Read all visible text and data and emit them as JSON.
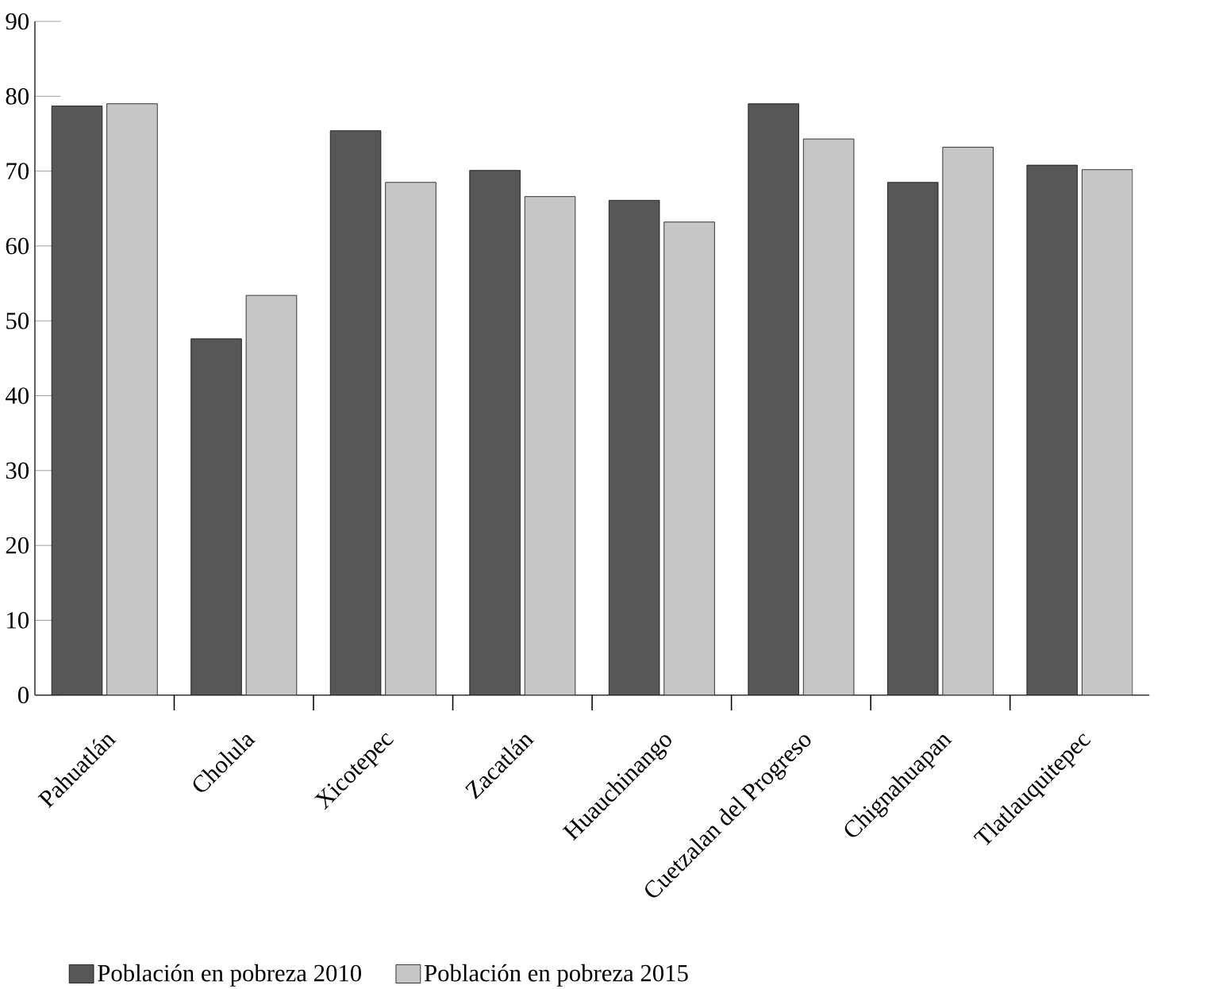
{
  "chart_data": {
    "type": "bar",
    "categories": [
      "Pahuatlán",
      "Cholula",
      "Xicotepec",
      "Zacatlán",
      "Huauchinango",
      "Cuetzalan del Progreso",
      "Chignahuapan",
      "Tlatlauquitepec"
    ],
    "series": [
      {
        "name": "Población en pobreza 2010",
        "color": "#575757",
        "values": [
          78.7,
          47.6,
          75.4,
          70.1,
          66.1,
          79.0,
          68.5,
          70.8
        ]
      },
      {
        "name": "Población en pobreza 2015",
        "color": "#c6c6c6",
        "values": [
          79.0,
          53.4,
          68.5,
          66.6,
          63.2,
          74.3,
          73.2,
          70.2
        ]
      }
    ],
    "ylim": [
      0,
      90
    ],
    "yticks": [
      0,
      10,
      20,
      30,
      40,
      50,
      60,
      70,
      80,
      90
    ],
    "grid": false,
    "legend": "bottom"
  }
}
